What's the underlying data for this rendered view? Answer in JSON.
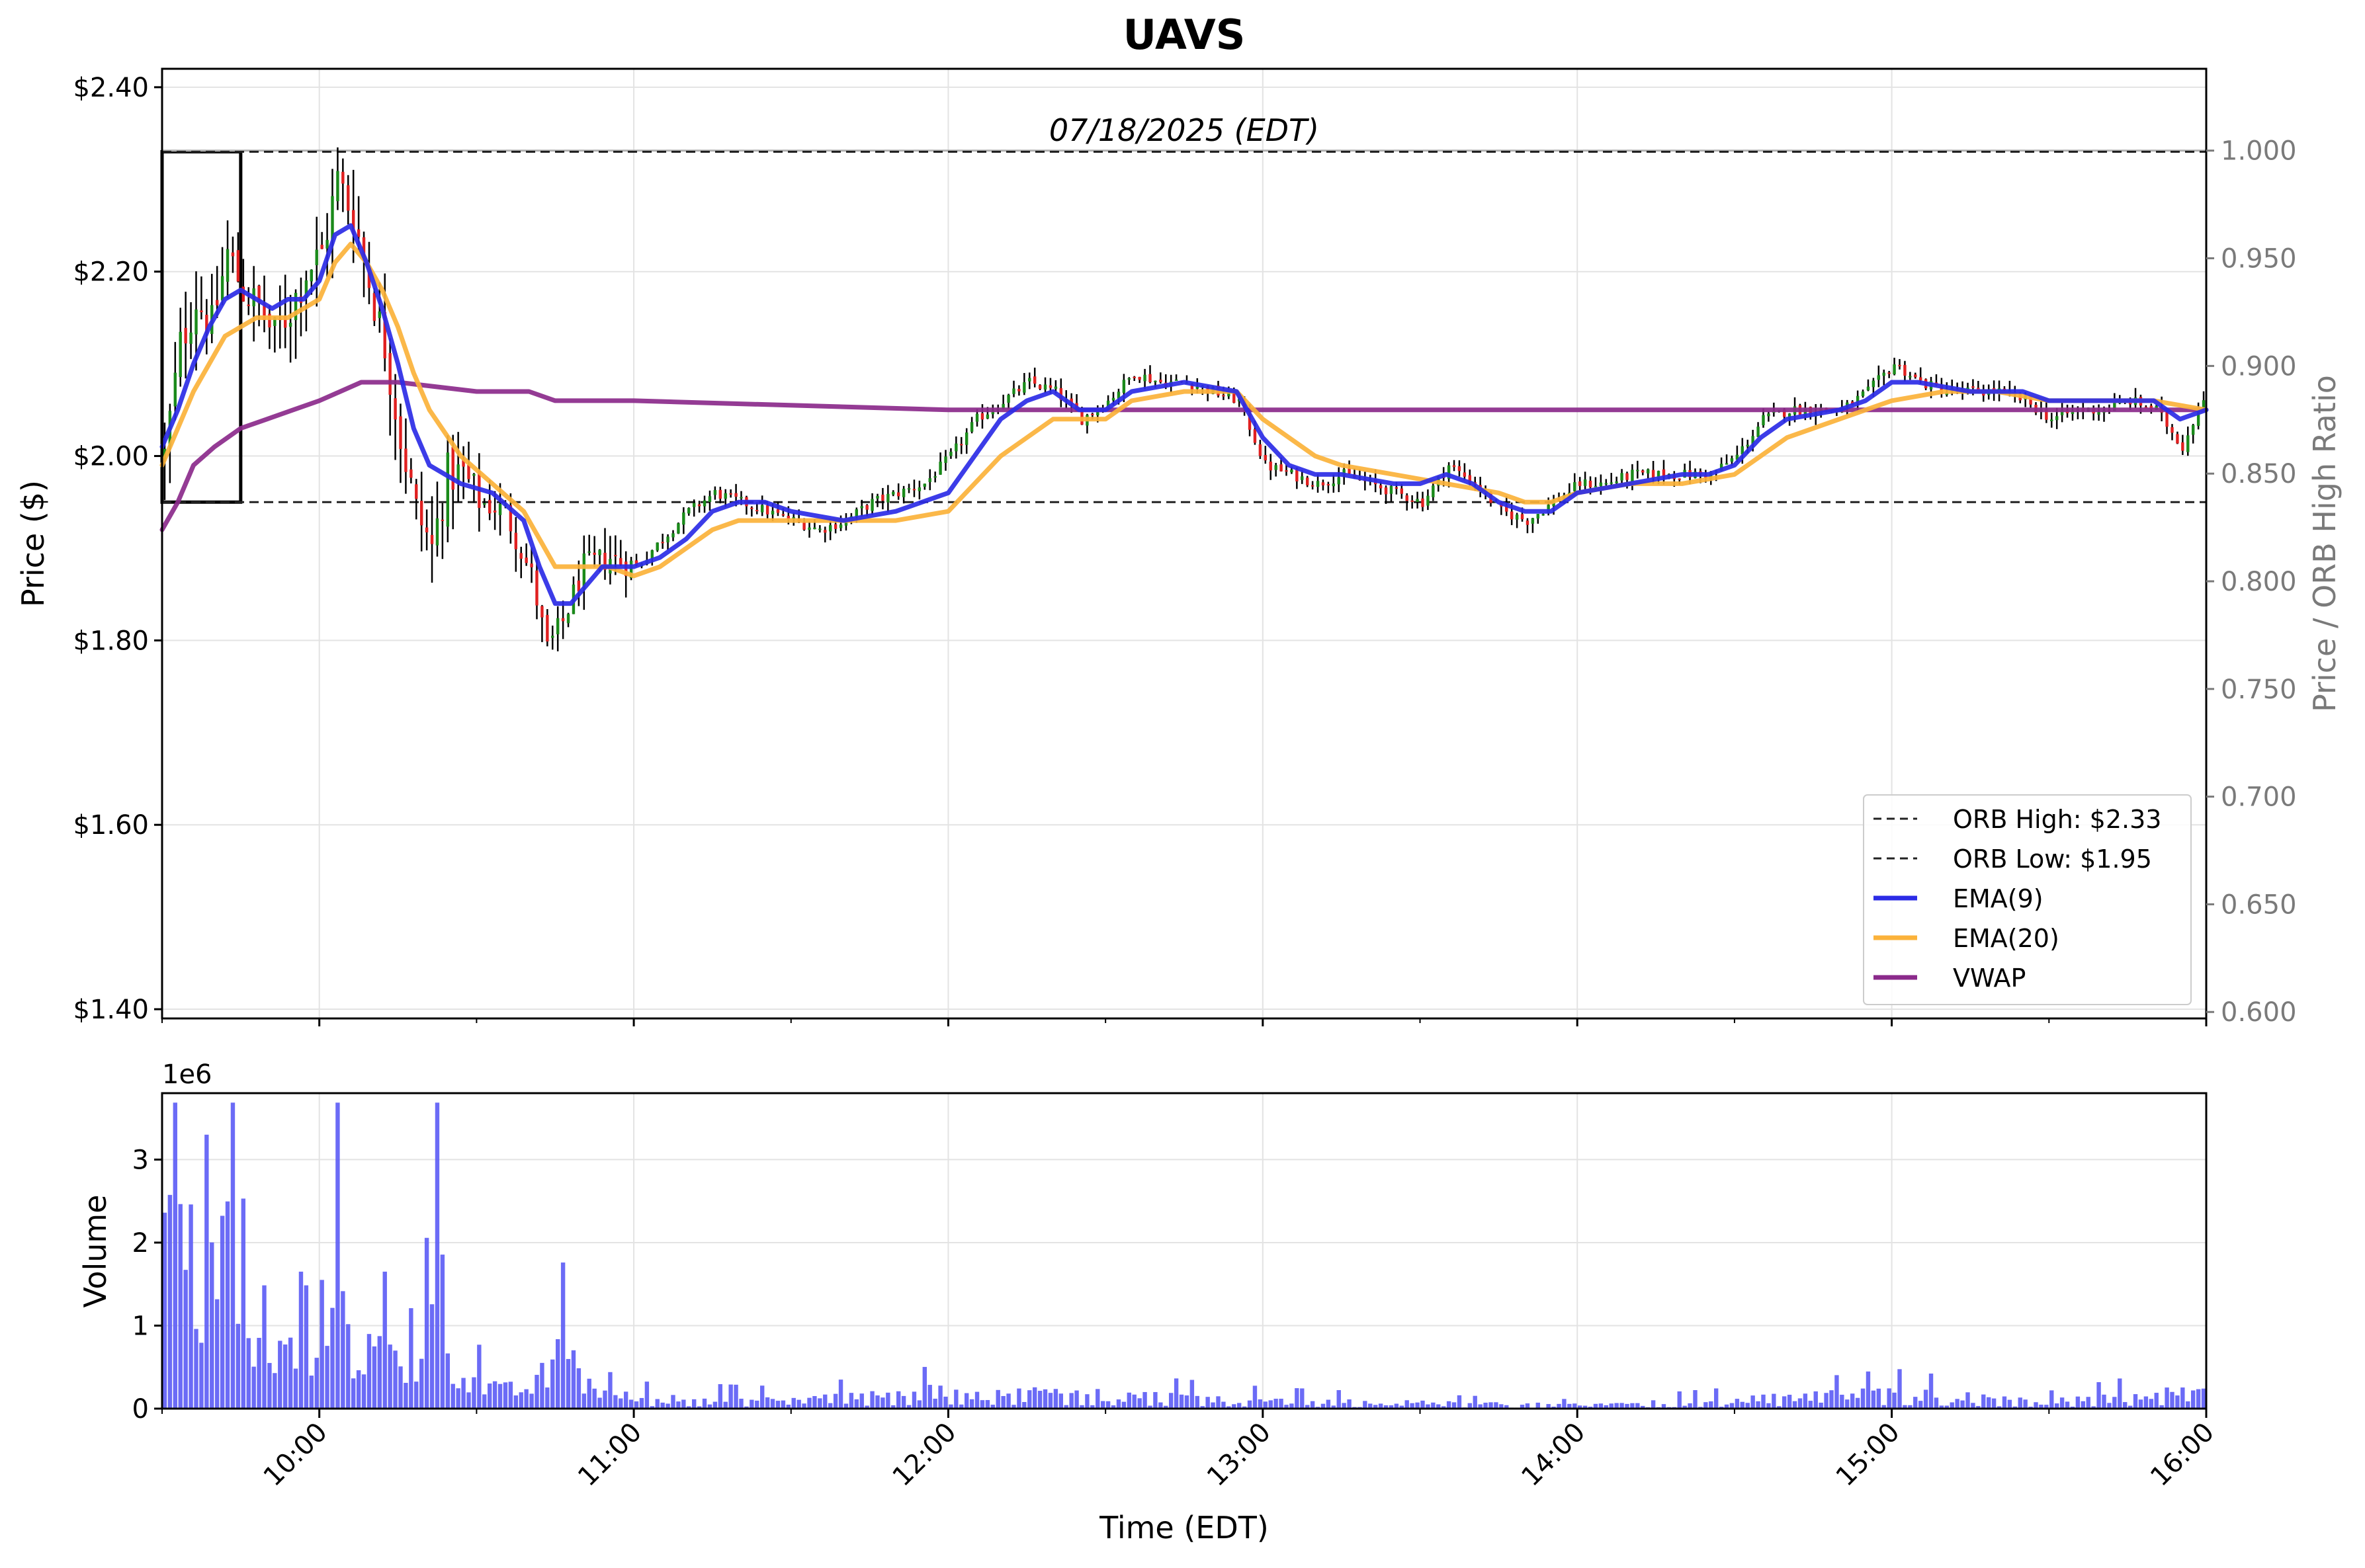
{
  "chart_data": {
    "type": "candlestick",
    "title": "UAVS",
    "date_label": "07/18/2025 (EDT)",
    "xlabel": "Time (EDT)",
    "x_ticks": [
      "10:00",
      "11:00",
      "12:00",
      "13:00",
      "14:00",
      "15:00",
      "16:00"
    ],
    "x_range": [
      "09:30",
      "16:00"
    ],
    "price_panel": {
      "ylabel": "Price ($)",
      "ylim": [
        1.39,
        2.42
      ],
      "y_ticks": [
        "$1.40",
        "$1.60",
        "$1.80",
        "$2.00",
        "$2.20",
        "$2.40"
      ],
      "right_axis": {
        "ylabel": "Price / ORB High Ratio",
        "ylim": [
          0.597,
          1.038
        ],
        "ticks": [
          "0.600",
          "0.650",
          "0.700",
          "0.750",
          "0.800",
          "0.850",
          "0.900",
          "0.950",
          "1.000"
        ],
        "reference_line": 1.0
      },
      "orb": {
        "high": 2.33,
        "low": 1.95,
        "window": [
          "09:30",
          "09:45"
        ]
      },
      "legend": {
        "position": "lower-right",
        "entries": [
          {
            "label": "ORB High: $2.33",
            "style": "dashed",
            "color": "#222222"
          },
          {
            "label": "ORB Low: $1.95",
            "style": "dashed",
            "color": "#222222"
          },
          {
            "label": "EMA(9)",
            "style": "solid",
            "color": "#2b2be6"
          },
          {
            "label": "EMA(20)",
            "style": "solid",
            "color": "#fbb23a"
          },
          {
            "label": "VWAP",
            "style": "solid",
            "color": "#8b2a8b"
          }
        ]
      },
      "candle_colors": {
        "up": "#1a8a1a",
        "down": "#e02020",
        "wick": "#000000"
      },
      "close_path": [
        [
          "09:30",
          2.0
        ],
        [
          "09:33",
          2.12
        ],
        [
          "09:36",
          2.17
        ],
        [
          "09:39",
          2.14
        ],
        [
          "09:42",
          2.22
        ],
        [
          "09:45",
          2.18
        ],
        [
          "09:48",
          2.16
        ],
        [
          "09:51",
          2.13
        ],
        [
          "09:54",
          2.16
        ],
        [
          "09:57",
          2.2
        ],
        [
          "10:00",
          2.22
        ],
        [
          "10:03",
          2.3
        ],
        [
          "10:06",
          2.26
        ],
        [
          "10:09",
          2.19
        ],
        [
          "10:12",
          2.12
        ],
        [
          "10:15",
          2.02
        ],
        [
          "10:18",
          1.94
        ],
        [
          "10:21",
          1.9
        ],
        [
          "10:24",
          1.98
        ],
        [
          "10:27",
          1.98
        ],
        [
          "10:30",
          1.95
        ],
        [
          "10:35",
          1.94
        ],
        [
          "10:40",
          1.87
        ],
        [
          "10:43",
          1.79
        ],
        [
          "10:46",
          1.82
        ],
        [
          "10:50",
          1.88
        ],
        [
          "10:55",
          1.89
        ],
        [
          "11:00",
          1.88
        ],
        [
          "11:05",
          1.91
        ],
        [
          "11:10",
          1.94
        ],
        [
          "11:15",
          1.96
        ],
        [
          "11:20",
          1.95
        ],
        [
          "11:25",
          1.94
        ],
        [
          "11:30",
          1.93
        ],
        [
          "11:35",
          1.92
        ],
        [
          "11:40",
          1.93
        ],
        [
          "11:45",
          1.95
        ],
        [
          "11:50",
          1.96
        ],
        [
          "11:55",
          1.97
        ],
        [
          "12:00",
          2.0
        ],
        [
          "12:05",
          2.04
        ],
        [
          "12:10",
          2.06
        ],
        [
          "12:15",
          2.08
        ],
        [
          "12:20",
          2.07
        ],
        [
          "12:25",
          2.04
        ],
        [
          "12:30",
          2.06
        ],
        [
          "12:35",
          2.09
        ],
        [
          "12:40",
          2.08
        ],
        [
          "12:45",
          2.08
        ],
        [
          "12:50",
          2.07
        ],
        [
          "12:55",
          2.06
        ],
        [
          "13:00",
          1.99
        ],
        [
          "13:05",
          1.98
        ],
        [
          "13:10",
          1.97
        ],
        [
          "13:15",
          1.98
        ],
        [
          "13:20",
          1.97
        ],
        [
          "13:25",
          1.96
        ],
        [
          "13:30",
          1.95
        ],
        [
          "13:35",
          1.99
        ],
        [
          "13:40",
          1.97
        ],
        [
          "13:45",
          1.94
        ],
        [
          "13:50",
          1.93
        ],
        [
          "13:55",
          1.95
        ],
        [
          "14:00",
          1.97
        ],
        [
          "14:05",
          1.97
        ],
        [
          "14:10",
          1.98
        ],
        [
          "14:15",
          1.98
        ],
        [
          "14:20",
          1.98
        ],
        [
          "14:25",
          1.98
        ],
        [
          "14:30",
          2.0
        ],
        [
          "14:35",
          2.04
        ],
        [
          "14:40",
          2.05
        ],
        [
          "14:45",
          2.05
        ],
        [
          "14:50",
          2.05
        ],
        [
          "14:55",
          2.07
        ],
        [
          "15:00",
          2.1
        ],
        [
          "15:05",
          2.08
        ],
        [
          "15:10",
          2.07
        ],
        [
          "15:15",
          2.07
        ],
        [
          "15:20",
          2.07
        ],
        [
          "15:25",
          2.06
        ],
        [
          "15:30",
          2.04
        ],
        [
          "15:35",
          2.05
        ],
        [
          "15:40",
          2.05
        ],
        [
          "15:45",
          2.06
        ],
        [
          "15:50",
          2.05
        ],
        [
          "15:55",
          2.01
        ],
        [
          "16:00",
          2.08
        ]
      ],
      "ema9": [
        [
          "09:30",
          2.01
        ],
        [
          "09:33",
          2.05
        ],
        [
          "09:36",
          2.1
        ],
        [
          "09:39",
          2.14
        ],
        [
          "09:42",
          2.17
        ],
        [
          "09:45",
          2.18
        ],
        [
          "09:48",
          2.17
        ],
        [
          "09:51",
          2.16
        ],
        [
          "09:54",
          2.17
        ],
        [
          "09:57",
          2.17
        ],
        [
          "10:00",
          2.19
        ],
        [
          "10:03",
          2.24
        ],
        [
          "10:06",
          2.25
        ],
        [
          "10:09",
          2.21
        ],
        [
          "10:12",
          2.16
        ],
        [
          "10:15",
          2.1
        ],
        [
          "10:18",
          2.03
        ],
        [
          "10:21",
          1.99
        ],
        [
          "10:27",
          1.97
        ],
        [
          "10:33",
          1.96
        ],
        [
          "10:39",
          1.93
        ],
        [
          "10:42",
          1.88
        ],
        [
          "10:45",
          1.84
        ],
        [
          "10:48",
          1.84
        ],
        [
          "10:51",
          1.86
        ],
        [
          "10:54",
          1.88
        ],
        [
          "11:00",
          1.88
        ],
        [
          "11:05",
          1.89
        ],
        [
          "11:10",
          1.91
        ],
        [
          "11:15",
          1.94
        ],
        [
          "11:20",
          1.95
        ],
        [
          "11:25",
          1.95
        ],
        [
          "11:30",
          1.94
        ],
        [
          "11:40",
          1.93
        ],
        [
          "11:50",
          1.94
        ],
        [
          "12:00",
          1.96
        ],
        [
          "12:05",
          2.0
        ],
        [
          "12:10",
          2.04
        ],
        [
          "12:15",
          2.06
        ],
        [
          "12:20",
          2.07
        ],
        [
          "12:25",
          2.05
        ],
        [
          "12:30",
          2.05
        ],
        [
          "12:35",
          2.07
        ],
        [
          "12:45",
          2.08
        ],
        [
          "12:55",
          2.07
        ],
        [
          "13:00",
          2.02
        ],
        [
          "13:05",
          1.99
        ],
        [
          "13:10",
          1.98
        ],
        [
          "13:15",
          1.98
        ],
        [
          "13:25",
          1.97
        ],
        [
          "13:30",
          1.97
        ],
        [
          "13:35",
          1.98
        ],
        [
          "13:40",
          1.97
        ],
        [
          "13:45",
          1.95
        ],
        [
          "13:50",
          1.94
        ],
        [
          "13:55",
          1.94
        ],
        [
          "14:00",
          1.96
        ],
        [
          "14:10",
          1.97
        ],
        [
          "14:20",
          1.98
        ],
        [
          "14:25",
          1.98
        ],
        [
          "14:30",
          1.99
        ],
        [
          "14:35",
          2.02
        ],
        [
          "14:40",
          2.04
        ],
        [
          "14:50",
          2.05
        ],
        [
          "14:55",
          2.06
        ],
        [
          "15:00",
          2.08
        ],
        [
          "15:05",
          2.08
        ],
        [
          "15:15",
          2.07
        ],
        [
          "15:25",
          2.07
        ],
        [
          "15:30",
          2.06
        ],
        [
          "15:40",
          2.06
        ],
        [
          "15:50",
          2.06
        ],
        [
          "15:55",
          2.04
        ],
        [
          "16:00",
          2.05
        ]
      ],
      "ema20": [
        [
          "09:30",
          1.99
        ],
        [
          "09:33",
          2.03
        ],
        [
          "09:36",
          2.07
        ],
        [
          "09:39",
          2.1
        ],
        [
          "09:42",
          2.13
        ],
        [
          "09:45",
          2.14
        ],
        [
          "09:48",
          2.15
        ],
        [
          "09:51",
          2.15
        ],
        [
          "09:54",
          2.15
        ],
        [
          "09:57",
          2.16
        ],
        [
          "10:00",
          2.17
        ],
        [
          "10:03",
          2.21
        ],
        [
          "10:06",
          2.23
        ],
        [
          "10:09",
          2.21
        ],
        [
          "10:12",
          2.18
        ],
        [
          "10:15",
          2.14
        ],
        [
          "10:18",
          2.09
        ],
        [
          "10:21",
          2.05
        ],
        [
          "10:27",
          2.0
        ],
        [
          "10:33",
          1.97
        ],
        [
          "10:39",
          1.94
        ],
        [
          "10:42",
          1.91
        ],
        [
          "10:45",
          1.88
        ],
        [
          "10:50",
          1.88
        ],
        [
          "10:55",
          1.88
        ],
        [
          "11:00",
          1.87
        ],
        [
          "11:05",
          1.88
        ],
        [
          "11:10",
          1.9
        ],
        [
          "11:15",
          1.92
        ],
        [
          "11:20",
          1.93
        ],
        [
          "11:30",
          1.93
        ],
        [
          "11:40",
          1.93
        ],
        [
          "11:50",
          1.93
        ],
        [
          "12:00",
          1.94
        ],
        [
          "12:05",
          1.97
        ],
        [
          "12:10",
          2.0
        ],
        [
          "12:15",
          2.02
        ],
        [
          "12:20",
          2.04
        ],
        [
          "12:25",
          2.04
        ],
        [
          "12:30",
          2.04
        ],
        [
          "12:35",
          2.06
        ],
        [
          "12:45",
          2.07
        ],
        [
          "12:55",
          2.07
        ],
        [
          "13:00",
          2.04
        ],
        [
          "13:05",
          2.02
        ],
        [
          "13:10",
          2.0
        ],
        [
          "13:15",
          1.99
        ],
        [
          "13:25",
          1.98
        ],
        [
          "13:35",
          1.97
        ],
        [
          "13:45",
          1.96
        ],
        [
          "13:50",
          1.95
        ],
        [
          "13:55",
          1.95
        ],
        [
          "14:00",
          1.96
        ],
        [
          "14:10",
          1.97
        ],
        [
          "14:20",
          1.97
        ],
        [
          "14:30",
          1.98
        ],
        [
          "14:35",
          2.0
        ],
        [
          "14:40",
          2.02
        ],
        [
          "14:50",
          2.04
        ],
        [
          "15:00",
          2.06
        ],
        [
          "15:10",
          2.07
        ],
        [
          "15:20",
          2.07
        ],
        [
          "15:30",
          2.06
        ],
        [
          "15:40",
          2.06
        ],
        [
          "15:50",
          2.06
        ],
        [
          "16:00",
          2.05
        ]
      ],
      "vwap": [
        [
          "09:30",
          1.92
        ],
        [
          "09:33",
          1.95
        ],
        [
          "09:36",
          1.99
        ],
        [
          "09:40",
          2.01
        ],
        [
          "09:45",
          2.03
        ],
        [
          "09:50",
          2.04
        ],
        [
          "09:55",
          2.05
        ],
        [
          "10:00",
          2.06
        ],
        [
          "10:04",
          2.07
        ],
        [
          "10:08",
          2.08
        ],
        [
          "10:15",
          2.08
        ],
        [
          "10:30",
          2.07
        ],
        [
          "10:40",
          2.07
        ],
        [
          "10:45",
          2.06
        ],
        [
          "11:00",
          2.06
        ],
        [
          "12:00",
          2.05
        ],
        [
          "13:00",
          2.05
        ],
        [
          "14:00",
          2.05
        ],
        [
          "15:00",
          2.05
        ],
        [
          "16:00",
          2.05
        ]
      ]
    },
    "volume_panel": {
      "ylabel": "Volume",
      "multiplier": "1e6",
      "ylim": [
        0,
        3.8
      ],
      "y_ticks": [
        "0",
        "1",
        "2",
        "3"
      ],
      "bar_color": "#5b5bf5",
      "profile": [
        [
          "09:30",
          2.7
        ],
        [
          "09:32",
          3.4
        ],
        [
          "09:34",
          2.2
        ],
        [
          "09:36",
          1.9
        ],
        [
          "09:38",
          1.5
        ],
        [
          "09:40",
          2.6
        ],
        [
          "09:42",
          2.4
        ],
        [
          "09:44",
          1.4
        ],
        [
          "09:46",
          0.9
        ],
        [
          "09:50",
          0.6
        ],
        [
          "09:54",
          0.9
        ],
        [
          "09:58",
          0.6
        ],
        [
          "10:00",
          1.3
        ],
        [
          "10:02",
          2.4
        ],
        [
          "10:04",
          1.8
        ],
        [
          "10:06",
          0.9
        ],
        [
          "10:10",
          0.8
        ],
        [
          "10:14",
          0.7
        ],
        [
          "10:18",
          0.5
        ],
        [
          "10:22",
          3.6
        ],
        [
          "10:24",
          0.9
        ],
        [
          "10:28",
          0.4
        ],
        [
          "10:34",
          0.25
        ],
        [
          "10:40",
          0.3
        ],
        [
          "10:44",
          0.6
        ],
        [
          "10:47",
          0.9
        ],
        [
          "10:50",
          0.4
        ],
        [
          "10:55",
          0.2
        ],
        [
          "11:00",
          0.15
        ],
        [
          "11:30",
          0.12
        ],
        [
          "12:00",
          0.25
        ],
        [
          "12:30",
          0.2
        ],
        [
          "13:00",
          0.12
        ],
        [
          "13:30",
          0.08
        ],
        [
          "14:00",
          0.05
        ],
        [
          "14:30",
          0.12
        ],
        [
          "15:00",
          0.22
        ],
        [
          "15:30",
          0.1
        ],
        [
          "16:00",
          0.25
        ]
      ]
    }
  }
}
